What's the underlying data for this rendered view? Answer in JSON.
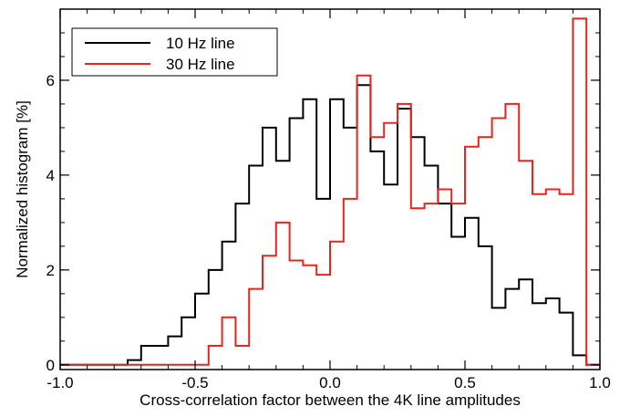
{
  "chart_data": {
    "type": "histogram",
    "title": "",
    "xlabel": "Cross-correlation factor between the 4K line amplitudes",
    "ylabel": "Normalized histogram [%]",
    "xlim": [
      -1.0,
      1.0
    ],
    "ylim": [
      -0.1,
      7.5
    ],
    "xticks": [
      -1.0,
      -0.5,
      0.0,
      0.5,
      1.0
    ],
    "xtick_labels": [
      "-1.0",
      "-0.5",
      "0.0",
      "0.5",
      "1.0"
    ],
    "yticks": [
      0,
      2,
      4,
      6
    ],
    "ytick_labels": [
      "0",
      "2",
      "4",
      "6"
    ],
    "grid": false,
    "legend": "top-left",
    "bin_edges": [
      -1.0,
      -0.95,
      -0.9,
      -0.85,
      -0.8,
      -0.75,
      -0.7,
      -0.65,
      -0.6,
      -0.55,
      -0.5,
      -0.45,
      -0.4,
      -0.35,
      -0.3,
      -0.25,
      -0.2,
      -0.15,
      -0.1,
      -0.05,
      0.0,
      0.05,
      0.1,
      0.15,
      0.2,
      0.25,
      0.3,
      0.35,
      0.4,
      0.45,
      0.5,
      0.55,
      0.6,
      0.65,
      0.7,
      0.75,
      0.8,
      0.85,
      0.9,
      0.95,
      1.0
    ],
    "series": [
      {
        "name": "10 Hz line",
        "color": "#000000",
        "values": [
          0,
          0,
          0,
          0,
          0,
          0.1,
          0.4,
          0.4,
          0.6,
          1.0,
          1.5,
          2.0,
          2.6,
          3.4,
          4.2,
          5.0,
          4.3,
          5.2,
          5.6,
          3.5,
          5.6,
          5.0,
          5.9,
          4.5,
          3.8,
          5.4,
          4.8,
          4.2,
          3.4,
          2.7,
          3.1,
          2.5,
          1.2,
          1.6,
          1.8,
          1.3,
          1.4,
          1.1,
          0.2,
          0
        ]
      },
      {
        "name": "30 Hz line",
        "color": "#e8251c",
        "values": [
          0,
          0,
          0,
          0,
          0,
          0,
          0,
          0,
          0,
          0,
          0,
          0.4,
          1.0,
          0.4,
          1.6,
          2.3,
          3.0,
          2.2,
          2.1,
          1.9,
          2.6,
          3.5,
          6.1,
          4.8,
          5.1,
          5.5,
          3.3,
          3.4,
          3.7,
          3.4,
          4.6,
          4.8,
          5.2,
          5.5,
          4.3,
          3.6,
          3.7,
          3.6,
          7.3,
          0
        ]
      }
    ]
  }
}
